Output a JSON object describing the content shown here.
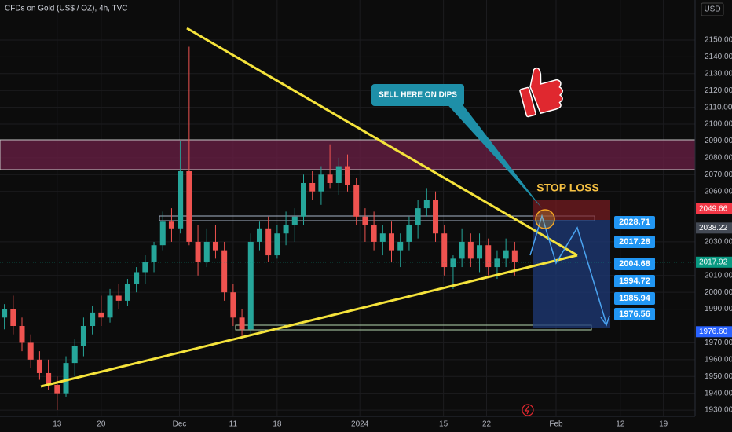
{
  "chart_data": {
    "type": "candlestick",
    "title": "CFDs on Gold (US$ / OZ), 4h, TVC",
    "currency": "USD",
    "up_color": "#26a69a",
    "down_color": "#ef5350",
    "grid": true,
    "xlim": [
      -6.5,
      72.5
    ],
    "ylim": [
      1926.3,
      2173.8
    ],
    "xticks": [
      {
        "value": 0,
        "label": "13"
      },
      {
        "value": 5,
        "label": "20"
      },
      {
        "value": 13.9,
        "label": "Dec"
      },
      {
        "value": 20,
        "label": "11"
      },
      {
        "value": 25,
        "label": "18"
      },
      {
        "value": 34.4,
        "label": "2024"
      },
      {
        "value": 43.9,
        "label": "15"
      },
      {
        "value": 48.8,
        "label": "22"
      },
      {
        "value": 56.7,
        "label": "Feb"
      },
      {
        "value": 64,
        "label": "12"
      },
      {
        "value": 68.9,
        "label": "19"
      }
    ],
    "yticks": [
      {
        "value": 1930,
        "label": "1930.00"
      },
      {
        "value": 1940,
        "label": "1940.00"
      },
      {
        "value": 1950,
        "label": "1950.00"
      },
      {
        "value": 1960,
        "label": "1960.00"
      },
      {
        "value": 1970,
        "label": "1970.00"
      },
      {
        "value": 1990,
        "label": "1990.00"
      },
      {
        "value": 2000,
        "label": "2000.00"
      },
      {
        "value": 2010,
        "label": "2010.00"
      },
      {
        "value": 2030,
        "label": "2030.00"
      },
      {
        "value": 2060,
        "label": "2060.00"
      },
      {
        "value": 2070,
        "label": "2070.00"
      },
      {
        "value": 2080,
        "label": "2080.00"
      },
      {
        "value": 2090,
        "label": "2090.00"
      },
      {
        "value": 2100,
        "label": "2100.00"
      },
      {
        "value": 2110,
        "label": "2110.00"
      },
      {
        "value": 2120,
        "label": "2120.00"
      },
      {
        "value": 2130,
        "label": "2130.00"
      },
      {
        "value": 2140,
        "label": "2140.00"
      },
      {
        "value": 2150,
        "label": "2150.00"
      }
    ],
    "x": [
      -6,
      -5,
      -4,
      -3,
      -2,
      -1,
      0,
      1,
      2,
      3,
      4,
      5,
      6,
      7,
      8,
      9,
      10,
      11,
      12,
      13,
      14,
      15,
      16,
      17,
      18,
      19,
      20,
      21,
      22,
      23,
      24,
      25,
      26,
      27,
      28,
      29,
      30,
      31,
      32,
      33,
      34,
      35,
      36,
      37,
      38,
      39,
      40,
      41,
      42,
      43,
      44,
      45,
      46,
      47,
      48,
      49,
      50,
      51,
      52
    ],
    "open": [
      1985,
      1990,
      1980,
      1970,
      1960,
      1952,
      1945,
      1940,
      1958,
      1968,
      1980,
      1988,
      1985,
      1998,
      1995,
      2005,
      2012,
      2018,
      2028,
      2042,
      2038,
      2072,
      2030,
      2018,
      2030,
      2025,
      2000,
      1985,
      1978,
      2030,
      2038,
      2022,
      2035,
      2040,
      2045,
      2065,
      2060,
      2070,
      2065,
      2075,
      2064,
      2045,
      2040,
      2030,
      2035,
      2025,
      2030,
      2040,
      2050,
      2055,
      2035,
      2015,
      2020,
      2030,
      2020,
      2028,
      2015,
      2020,
      2025
    ],
    "high": [
      1993,
      1998,
      1985,
      1975,
      1965,
      1960,
      1950,
      1962,
      1972,
      1985,
      1992,
      1998,
      2002,
      2005,
      2008,
      2015,
      2022,
      2030,
      2048,
      2050,
      2090,
      2146,
      2040,
      2038,
      2040,
      2030,
      2005,
      1990,
      2035,
      2042,
      2045,
      2040,
      2048,
      2050,
      2070,
      2072,
      2075,
      2088,
      2080,
      2082,
      2068,
      2050,
      2048,
      2040,
      2042,
      2035,
      2045,
      2055,
      2062,
      2060,
      2040,
      2022,
      2038,
      2035,
      2035,
      2032,
      2025,
      2032,
      2030
    ],
    "low": [
      1978,
      1975,
      1965,
      1955,
      1948,
      1942,
      1930,
      1938,
      1950,
      1962,
      1975,
      1980,
      1982,
      1990,
      1992,
      2000,
      2005,
      2012,
      2025,
      2030,
      2035,
      2028,
      2010,
      2015,
      2020,
      1995,
      1980,
      1973,
      1975,
      2025,
      2018,
      2020,
      2028,
      2030,
      2040,
      2055,
      2052,
      2062,
      2058,
      2060,
      2040,
      2030,
      2025,
      2022,
      2018,
      2015,
      2025,
      2032,
      2045,
      2030,
      2010,
      2002,
      2015,
      2015,
      2012,
      2010,
      2008,
      2015,
      2010
    ],
    "close": [
      1990,
      1980,
      1970,
      1960,
      1952,
      1945,
      1940,
      1958,
      1968,
      1980,
      1988,
      1985,
      1998,
      1995,
      2005,
      2012,
      2018,
      2028,
      2042,
      2038,
      2072,
      2030,
      2018,
      2030,
      2025,
      2000,
      1985,
      1978,
      2030,
      2038,
      2022,
      2035,
      2040,
      2045,
      2065,
      2060,
      2070,
      2065,
      2075,
      2064,
      2045,
      2040,
      2030,
      2035,
      2025,
      2030,
      2040,
      2050,
      2055,
      2035,
      2015,
      2020,
      2030,
      2020,
      2028,
      2015,
      2020,
      2025,
      2018
    ],
    "price_labels": [
      {
        "value": 2049.66,
        "label": "2049.66",
        "color": "#f23645"
      },
      {
        "value": 2038.22,
        "label": "2038.22",
        "color": "#444a55"
      },
      {
        "value": 2017.92,
        "label": "2017.92",
        "color": "#089981"
      },
      {
        "value": 1976.6,
        "label": "1976.60",
        "color": "#2962ff"
      }
    ],
    "annotations": {
      "sell": "SELL HERE ON DIPS",
      "stop": "STOP LOSS"
    },
    "target_labels": [
      "2028.71",
      "2017.28",
      "2004.68",
      "1994.72",
      "1985.94",
      "1976.56"
    ]
  }
}
